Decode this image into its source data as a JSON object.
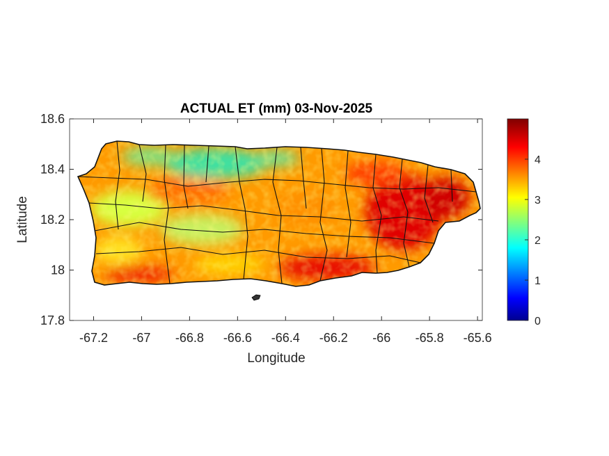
{
  "chart_data": {
    "type": "heatmap",
    "title": "ACTUAL ET (mm) 03-Nov-2025",
    "xlabel": "Longitude",
    "ylabel": "Latitude",
    "xlim": [
      -67.3,
      -65.58
    ],
    "ylim": [
      17.8,
      18.6
    ],
    "xticks": [
      -67.2,
      -67,
      -66.8,
      -66.6,
      -66.4,
      -66.2,
      -66,
      -65.8,
      -65.6
    ],
    "xtick_labels": [
      "-67.2",
      "-67",
      "-66.8",
      "-66.6",
      "-66.4",
      "-66.2",
      "-66",
      "-65.8",
      "-65.6"
    ],
    "yticks": [
      17.8,
      18,
      18.2,
      18.4,
      18.6
    ],
    "ytick_labels": [
      "17.8",
      "18",
      "18.2",
      "18.4",
      "18.6"
    ],
    "colorbar": {
      "colormap": "jet",
      "range": [
        0,
        5
      ],
      "ticks": [
        0,
        1,
        2,
        3,
        4
      ],
      "tick_labels": [
        "0",
        "1",
        "2",
        "3",
        "4"
      ]
    },
    "region": "Puerto Rico",
    "value_pattern": [
      {
        "area": "north-central coast",
        "lon": [
          -66.9,
          -66.5
        ],
        "lat": [
          18.38,
          18.5
        ],
        "approx_value": 2.4
      },
      {
        "area": "west interior",
        "lon": [
          -67.2,
          -66.9
        ],
        "lat": [
          18.15,
          18.3
        ],
        "approx_value": 3.0
      },
      {
        "area": "east / southeast",
        "lon": [
          -66.1,
          -65.6
        ],
        "lat": [
          17.95,
          18.35
        ],
        "approx_value": 4.6
      },
      {
        "area": "south coast",
        "lon": [
          -66.5,
          -66.1
        ],
        "lat": [
          17.95,
          18.05
        ],
        "approx_value": 4.5
      },
      {
        "area": "central interior",
        "lon": [
          -66.9,
          -66.4
        ],
        "lat": [
          18.1,
          18.35
        ],
        "approx_value": 3.9
      }
    ]
  }
}
